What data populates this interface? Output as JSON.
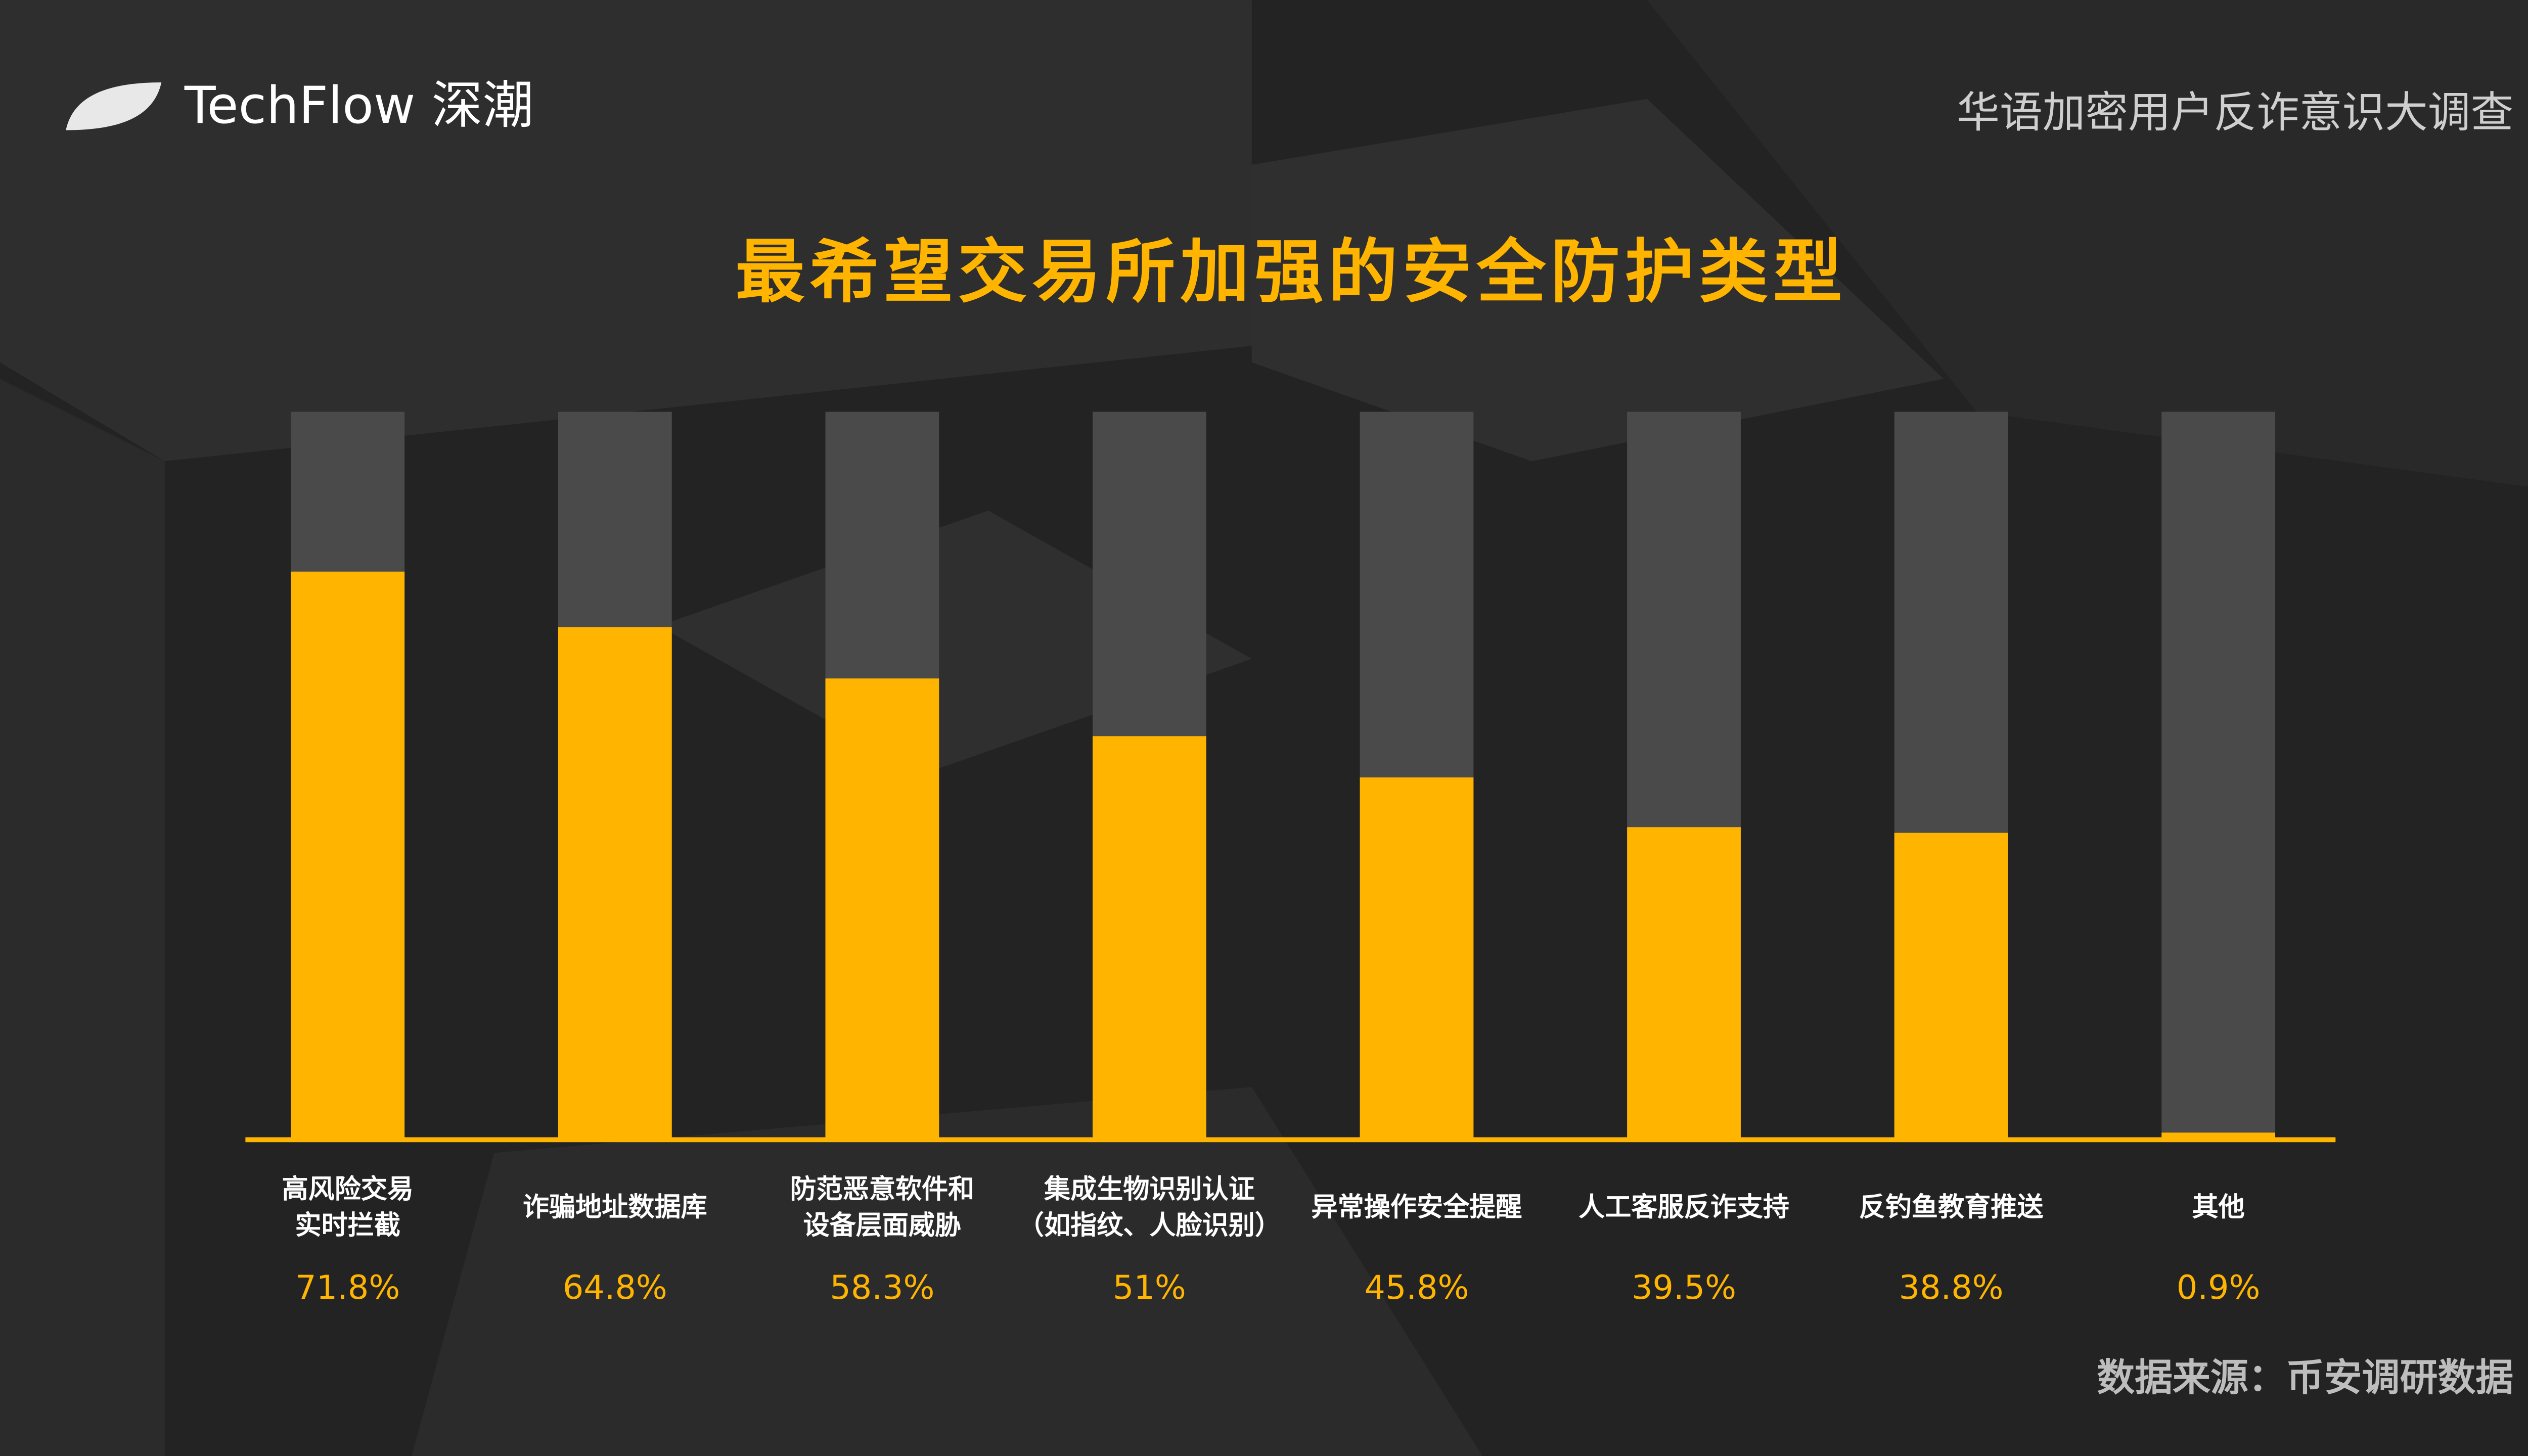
{
  "chart_data": {
    "type": "bar",
    "brand": "TechFlow 深潮",
    "subtitle": "华语加密用户反诈意识大调查",
    "title": "最希望交易所加强的安全防护类型",
    "source": "数据来源：币安调研数据",
    "categories": [
      [
        "高风险交易",
        "实时拦截"
      ],
      [
        "诈骗地址数据库"
      ],
      [
        "防范恶意软件和",
        "设备层面威胁"
      ],
      [
        "集成生物识别认证",
        "（如指纹、人脸识别）"
      ],
      [
        "异常操作安全提醒"
      ],
      [
        "人工客服反诈支持"
      ],
      [
        "反钓鱼教育推送"
      ],
      [
        "其他"
      ]
    ],
    "values": [
      71.8,
      64.8,
      58.3,
      51,
      45.8,
      39.5,
      38.8,
      0.9
    ],
    "value_labels": [
      "71.8%",
      "64.8%",
      "58.3%",
      "51%",
      "45.8%",
      "39.5%",
      "38.8%",
      "0.9%"
    ],
    "color": "#ffb400",
    "ylim": [
      0,
      92
    ]
  }
}
